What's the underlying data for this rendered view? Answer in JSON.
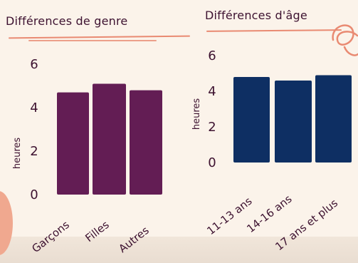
{
  "colors": {
    "background": "#fbf3ea",
    "left_bars": "#631d54",
    "right_bars": "#0e2f63",
    "text": "#3d1230",
    "accent": "#e98a72"
  },
  "chart_data": [
    {
      "type": "bar",
      "title": "Différences de genre",
      "ylabel": "heures",
      "ylim": [
        0,
        6
      ],
      "yticks": [
        "0",
        "2",
        "4",
        "6"
      ],
      "categories": [
        "Garçons",
        "Filles",
        "Autres"
      ],
      "values": [
        4.7,
        5.1,
        4.8
      ],
      "grid": false
    },
    {
      "type": "bar",
      "title": "Différences d'âge",
      "ylabel": "heures",
      "ylim": [
        0,
        6
      ],
      "yticks": [
        "0",
        "2",
        "4",
        "6"
      ],
      "categories": [
        "11-13 ans",
        "14-16 ans",
        "17 ans et plus"
      ],
      "values": [
        4.8,
        4.6,
        4.9
      ],
      "grid": false
    }
  ]
}
